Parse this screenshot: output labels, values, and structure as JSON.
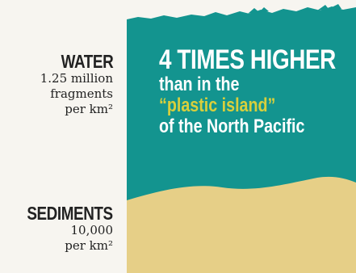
{
  "water": {
    "title": "WATER",
    "lines": [
      "1.25 million",
      "fragments",
      "per km²"
    ]
  },
  "sediments": {
    "title": "SEDIMENTS",
    "lines": [
      "10,000",
      "per km²"
    ]
  },
  "headline": {
    "big": "4 TIMES HIGHER",
    "line2": "than in the",
    "line3": "“plastic island”",
    "line4": "of the North Pacific"
  },
  "colors": {
    "background": "#f7f5f0",
    "water": "#13948f",
    "sand": "#e6cf87",
    "highlight": "#d8cf3c",
    "text_dark": "#222222",
    "text_light": "#ffffff"
  }
}
